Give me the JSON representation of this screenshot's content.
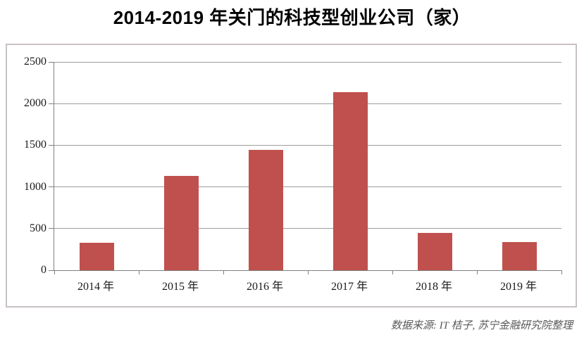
{
  "page": {
    "background": "#ffffff"
  },
  "chart_data": {
    "type": "bar",
    "title": "2014-2019 年关门的科技型创业公司（家）",
    "categories": [
      "2014 年",
      "2015 年",
      "2016 年",
      "2017 年",
      "2018 年",
      "2019 年"
    ],
    "values": [
      330,
      1130,
      1445,
      2140,
      450,
      335
    ],
    "xlabel": "",
    "ylabel": "",
    "ylim": [
      0,
      2500
    ],
    "yticks": [
      0,
      500,
      1000,
      1500,
      2000,
      2500
    ],
    "grid": true,
    "legend_position": "none",
    "bar_color": "#c0504d",
    "gridline_color": "#9d9d9d",
    "axis_color": "#808080",
    "frame_border_color": "#c9c2c2",
    "source_note": "数据来源: IT 桔子, 苏宁金融研究院整理"
  }
}
